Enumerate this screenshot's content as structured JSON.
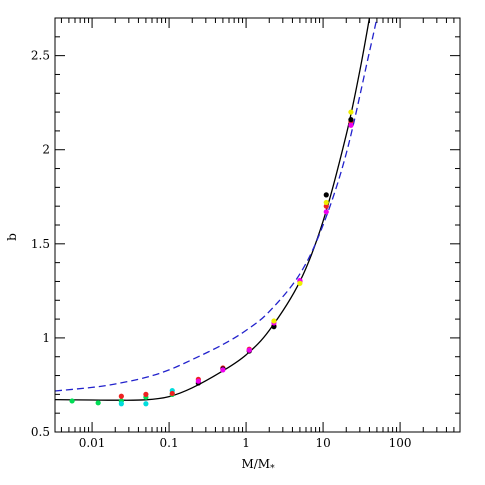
{
  "chart_data": {
    "type": "scatter",
    "xlabel": "M/M",
    "xlabel_sub": "*",
    "ylabel": "b",
    "xscale": "log",
    "xlim": [
      0.0033,
      600
    ],
    "ylim": [
      0.5,
      2.7
    ],
    "grid": false,
    "legend": "none",
    "x_ticks": [
      {
        "value": 0.01,
        "label": "0.01"
      },
      {
        "value": 0.1,
        "label": "0.1"
      },
      {
        "value": 1,
        "label": "1"
      },
      {
        "value": 10,
        "label": "10"
      },
      {
        "value": 100,
        "label": "100"
      }
    ],
    "y_ticks": [
      {
        "value": 0.5,
        "label": "0.5"
      },
      {
        "value": 1.0,
        "label": "1"
      },
      {
        "value": 1.5,
        "label": "1.5"
      },
      {
        "value": 2.0,
        "label": "2"
      },
      {
        "value": 2.5,
        "label": "2.5"
      }
    ],
    "series": [
      {
        "color": "#00dd55",
        "points": [
          [
            0.0055,
            0.665
          ],
          [
            0.012,
            0.655
          ],
          [
            0.024,
            0.665
          ],
          [
            0.05,
            0.685
          ],
          [
            0.11,
            0.7
          ]
        ]
      },
      {
        "color": "#00dddd",
        "points": [
          [
            0.024,
            0.65
          ],
          [
            0.05,
            0.65
          ],
          [
            0.11,
            0.72
          ]
        ]
      },
      {
        "color": "#ee2222",
        "points": [
          [
            0.024,
            0.69
          ],
          [
            0.05,
            0.7
          ],
          [
            0.11,
            0.705
          ],
          [
            0.24,
            0.78
          ],
          [
            0.5,
            0.84
          ],
          [
            1.1,
            0.94
          ],
          [
            2.3,
            1.065
          ],
          [
            5.0,
            1.3
          ],
          [
            11,
            1.7
          ],
          [
            23,
            2.15
          ]
        ]
      },
      {
        "color": "#000000",
        "points": [
          [
            0.24,
            0.76
          ],
          [
            0.5,
            0.835
          ],
          [
            1.1,
            0.93
          ],
          [
            2.3,
            1.06
          ],
          [
            11,
            1.76
          ],
          [
            23,
            2.16
          ]
        ]
      },
      {
        "color": "#ee00ee",
        "points": [
          [
            0.24,
            0.77
          ],
          [
            0.5,
            0.83
          ],
          [
            1.1,
            0.935
          ],
          [
            2.3,
            1.08
          ],
          [
            5.0,
            1.305
          ],
          [
            11,
            1.67
          ],
          [
            23,
            2.13
          ]
        ]
      },
      {
        "color": "#eeee00",
        "points": [
          [
            2.3,
            1.09
          ],
          [
            5.0,
            1.29
          ],
          [
            11,
            1.72
          ],
          [
            23,
            2.2
          ]
        ]
      }
    ],
    "curves": [
      {
        "color": "#000000",
        "style": "solid",
        "points": [
          [
            0.0033,
            0.672
          ],
          [
            0.01,
            0.67
          ],
          [
            0.02,
            0.669
          ],
          [
            0.05,
            0.671
          ],
          [
            0.1,
            0.688
          ],
          [
            0.2,
            0.735
          ],
          [
            0.5,
            0.825
          ],
          [
            1,
            0.91
          ],
          [
            2,
            1.04
          ],
          [
            5,
            1.3
          ],
          [
            10,
            1.62
          ],
          [
            20,
            2.08
          ],
          [
            30,
            2.42
          ],
          [
            40,
            2.7
          ]
        ]
      },
      {
        "color": "#2222cc",
        "style": "dashed",
        "points": [
          [
            0.0033,
            0.718
          ],
          [
            0.01,
            0.737
          ],
          [
            0.02,
            0.755
          ],
          [
            0.05,
            0.79
          ],
          [
            0.1,
            0.83
          ],
          [
            0.2,
            0.885
          ],
          [
            0.5,
            0.965
          ],
          [
            1,
            1.04
          ],
          [
            2,
            1.14
          ],
          [
            5,
            1.34
          ],
          [
            10,
            1.6
          ],
          [
            20,
            1.98
          ],
          [
            40,
            2.52
          ],
          [
            50,
            2.7
          ]
        ]
      }
    ]
  }
}
